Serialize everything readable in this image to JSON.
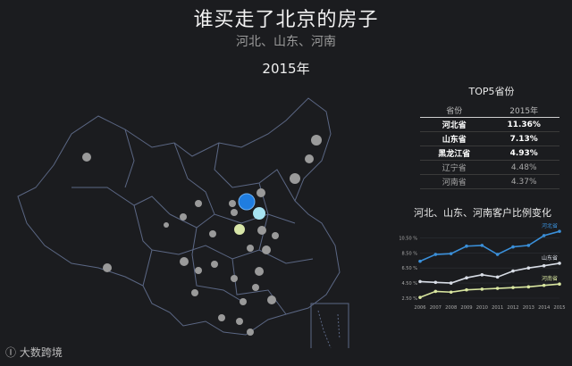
{
  "header": {
    "title": "谁买走了北京的房子",
    "subtitle": "河北、山东、河南",
    "year": "2015年"
  },
  "top5": {
    "title": "TOP5省份",
    "col_province": "省份",
    "col_year": "2015年",
    "rows": [
      {
        "province": "河北省",
        "value": "11.36%"
      },
      {
        "province": "山东省",
        "value": "7.13%"
      },
      {
        "province": "黑龙江省",
        "value": "4.93%"
      },
      {
        "province": "辽宁省",
        "value": "4.48%"
      },
      {
        "province": "河南省",
        "value": "4.37%"
      }
    ]
  },
  "brand": "大数跨境",
  "colors": {
    "hebei": "#3a8fd9",
    "shandong": "#d8dde6",
    "henan": "#d9e6a0",
    "map_stroke": "#5b6784",
    "bubble": "#9a9a9a",
    "highlight_blue": "#1f7de0",
    "highlight_cyan": "#a6e3f2",
    "highlight_yellow": "#d8e6a8"
  },
  "chart_data": [
    {
      "type": "scatter",
      "title": "",
      "description_note": "",
      "bubbles": [
        {
          "label": "",
          "size": "large",
          "highlight": "blue"
        },
        {
          "label": "",
          "size": "medium",
          "highlight": "cyan"
        },
        {
          "label": "",
          "size": "medium",
          "highlight": "yellow"
        }
      ]
    },
    {
      "type": "line",
      "title": "河北、山东、河南客户比例变化",
      "x": [
        "2006",
        "2007",
        "2008",
        "2009",
        "2010",
        "2011",
        "2012",
        "2013",
        "2014",
        "2015"
      ],
      "yticks": [
        "2.50 %",
        "4.50 %",
        "6.50 %",
        "8.50 %",
        "10.50 %"
      ],
      "ylim": [
        2.5,
        11.5
      ],
      "series": [
        {
          "name": "河北省",
          "color": "#3a8fd9",
          "values": [
            7.4,
            8.3,
            8.4,
            9.4,
            9.5,
            8.3,
            9.3,
            9.5,
            10.8,
            11.36
          ]
        },
        {
          "name": "山东省",
          "color": "#d8dde6",
          "values": [
            4.7,
            4.6,
            4.5,
            5.2,
            5.6,
            5.3,
            6.1,
            6.5,
            6.8,
            7.13
          ]
        },
        {
          "name": "河南省",
          "color": "#d9e6a0",
          "values": [
            2.6,
            3.4,
            3.3,
            3.6,
            3.7,
            3.8,
            3.9,
            4.0,
            4.2,
            4.37
          ]
        }
      ]
    }
  ]
}
